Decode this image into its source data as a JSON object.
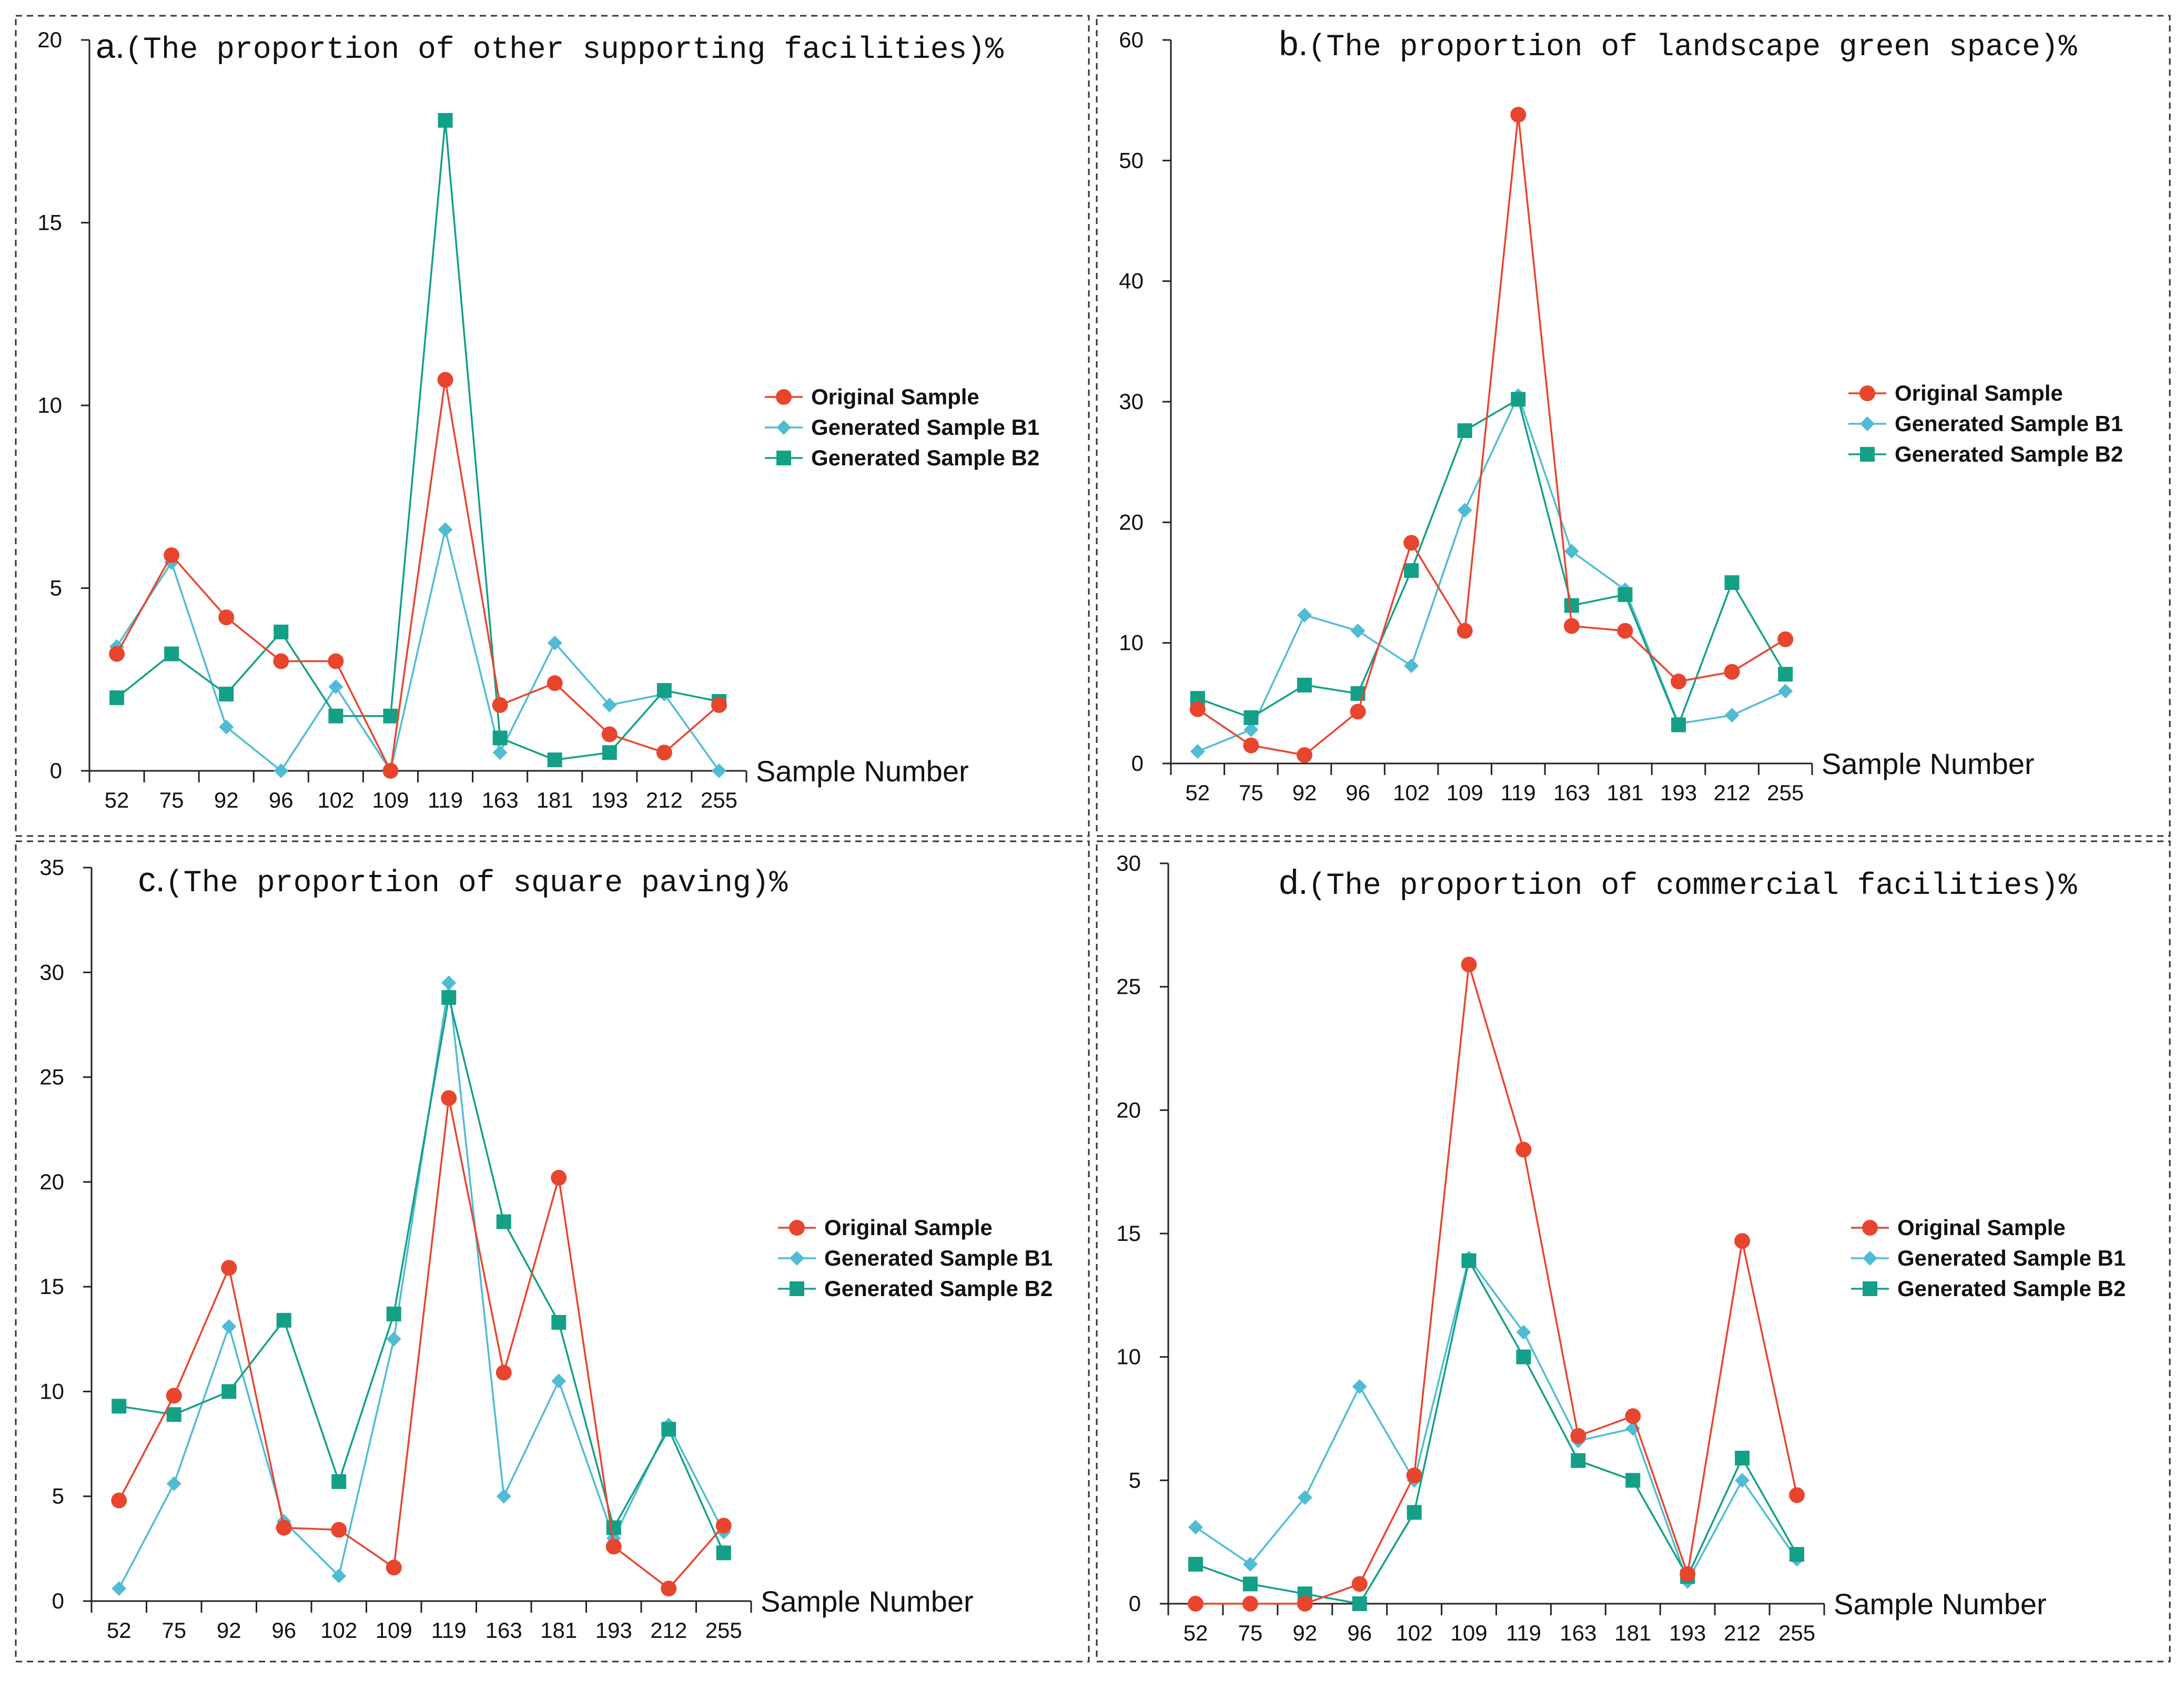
{
  "colors": {
    "Original Sample": "#e8452f",
    "Generated Sample B1": "#4fbcd4",
    "Generated Sample B2": "#13a087"
  },
  "markers": {
    "Original Sample": "circle",
    "Generated Sample B1": "diamond",
    "Generated Sample B2": "square"
  },
  "chart_data": [
    {
      "id": "a",
      "type": "line",
      "letter": "a.",
      "title": "(The proportion of other supporting facilities)%",
      "xlabel": "Sample Number",
      "ylabel": "",
      "categories": [
        "52",
        "75",
        "92",
        "96",
        "102",
        "109",
        "119",
        "163",
        "181",
        "193",
        "212",
        "255"
      ],
      "ylim": [
        0,
        20
      ],
      "yticks": [
        0,
        5,
        10,
        15,
        20
      ],
      "legend": "right",
      "series": [
        {
          "name": "Original Sample",
          "values": [
            3.2,
            5.9,
            4.2,
            3.0,
            3.0,
            0.0,
            10.7,
            1.8,
            2.4,
            1.0,
            0.5,
            1.8
          ]
        },
        {
          "name": "Generated Sample B1",
          "values": [
            3.4,
            5.7,
            1.2,
            0.0,
            2.3,
            0.0,
            6.6,
            0.5,
            3.5,
            1.8,
            2.1,
            0.0
          ]
        },
        {
          "name": "Generated Sample B2",
          "values": [
            2.0,
            3.2,
            2.1,
            3.8,
            1.5,
            1.5,
            17.8,
            0.9,
            0.3,
            0.5,
            2.2,
            1.9
          ]
        }
      ]
    },
    {
      "id": "b",
      "type": "line",
      "letter": "b.",
      "title": "(The proportion of landscape green space)%",
      "xlabel": "Sample Number",
      "ylabel": "",
      "categories": [
        "52",
        "75",
        "92",
        "96",
        "102",
        "109",
        "119",
        "163",
        "181",
        "193",
        "212",
        "255"
      ],
      "ylim": [
        0,
        60
      ],
      "yticks": [
        0,
        10,
        20,
        30,
        40,
        50,
        60
      ],
      "legend": "right",
      "series": [
        {
          "name": "Original Sample",
          "values": [
            4.5,
            1.5,
            0.7,
            4.3,
            18.3,
            11.0,
            53.8,
            11.4,
            11.0,
            6.8,
            7.6,
            10.3
          ]
        },
        {
          "name": "Generated Sample B1",
          "values": [
            1.0,
            2.8,
            12.3,
            11.0,
            8.1,
            21.0,
            30.5,
            17.6,
            14.4,
            3.3,
            4.0,
            6.0
          ]
        },
        {
          "name": "Generated Sample B2",
          "values": [
            5.4,
            3.8,
            6.5,
            5.8,
            16.0,
            27.6,
            30.2,
            13.1,
            14.0,
            3.2,
            15.0,
            7.4
          ]
        }
      ]
    },
    {
      "id": "c",
      "type": "line",
      "letter": "c.",
      "title": "(The proportion of square paving)%",
      "xlabel": "Sample Number",
      "ylabel": "",
      "categories": [
        "52",
        "75",
        "92",
        "96",
        "102",
        "109",
        "119",
        "163",
        "181",
        "193",
        "212",
        "255"
      ],
      "ylim": [
        0,
        35
      ],
      "yticks": [
        0,
        5,
        10,
        15,
        20,
        25,
        30,
        35
      ],
      "legend": "right",
      "series": [
        {
          "name": "Original Sample",
          "values": [
            4.8,
            9.8,
            15.9,
            3.5,
            3.4,
            1.6,
            24.0,
            10.9,
            20.2,
            2.6,
            0.6,
            3.6
          ]
        },
        {
          "name": "Generated Sample B1",
          "values": [
            0.6,
            5.6,
            13.1,
            3.8,
            1.2,
            12.5,
            29.5,
            5.0,
            10.5,
            3.0,
            8.4,
            3.3
          ]
        },
        {
          "name": "Generated Sample B2",
          "values": [
            9.3,
            8.9,
            10.0,
            13.4,
            5.7,
            13.7,
            28.8,
            18.1,
            13.3,
            3.5,
            8.2,
            2.3
          ]
        }
      ]
    },
    {
      "id": "d",
      "type": "line",
      "letter": "d.",
      "title": "(The proportion of commercial facilities)%",
      "xlabel": "Sample Number",
      "ylabel": "",
      "categories": [
        "52",
        "75",
        "92",
        "96",
        "102",
        "109",
        "119",
        "163",
        "181",
        "193",
        "212",
        "255"
      ],
      "ylim": [
        0,
        30
      ],
      "yticks": [
        0,
        5,
        10,
        15,
        20,
        25,
        30
      ],
      "legend": "right",
      "series": [
        {
          "name": "Original Sample",
          "values": [
            0.0,
            0.0,
            0.0,
            0.8,
            5.2,
            25.9,
            18.4,
            6.8,
            7.6,
            1.2,
            14.7,
            4.4
          ]
        },
        {
          "name": "Generated Sample B1",
          "values": [
            3.1,
            1.6,
            4.3,
            8.8,
            5.0,
            14.0,
            11.0,
            6.6,
            7.1,
            0.9,
            5.0,
            1.8
          ]
        },
        {
          "name": "Generated Sample B2",
          "values": [
            1.6,
            0.8,
            0.4,
            0.0,
            3.7,
            13.9,
            10.0,
            5.8,
            5.0,
            1.1,
            5.9,
            2.0
          ]
        }
      ]
    }
  ]
}
